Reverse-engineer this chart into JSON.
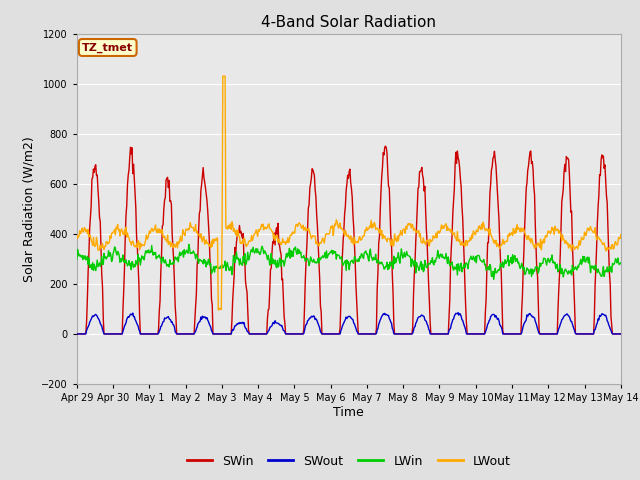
{
  "title": "4-Band Solar Radiation",
  "xlabel": "Time",
  "ylabel": "Solar Radiation (W/m2)",
  "ylim": [
    -200,
    1200
  ],
  "yticks": [
    -200,
    0,
    200,
    400,
    600,
    800,
    1000,
    1200
  ],
  "legend_label": "TZ_tmet",
  "series": {
    "SWin": {
      "color": "#cc0000",
      "linewidth": 1.0
    },
    "SWout": {
      "color": "#0000cc",
      "linewidth": 1.0
    },
    "LWin": {
      "color": "#00cc00",
      "linewidth": 1.0
    },
    "LWout": {
      "color": "#ffaa00",
      "linewidth": 1.0
    }
  },
  "bg_color": "#e0e0e0",
  "plot_bg_upper": "#d8d8d8",
  "plot_bg_lower": "#e8e8e8",
  "n_days": 15,
  "xtick_labels": [
    "Apr 29",
    "Apr 30",
    "May 1",
    "May 2",
    "May 3",
    "May 4",
    "May 5",
    "May 6",
    "May 7",
    "May 8",
    "May 9",
    "May 10",
    "May 11",
    "May 12",
    "May 13",
    "May 14"
  ],
  "xtick_positions": [
    0,
    1,
    2,
    3,
    4,
    5,
    6,
    7,
    8,
    9,
    10,
    11,
    12,
    13,
    14,
    15
  ]
}
